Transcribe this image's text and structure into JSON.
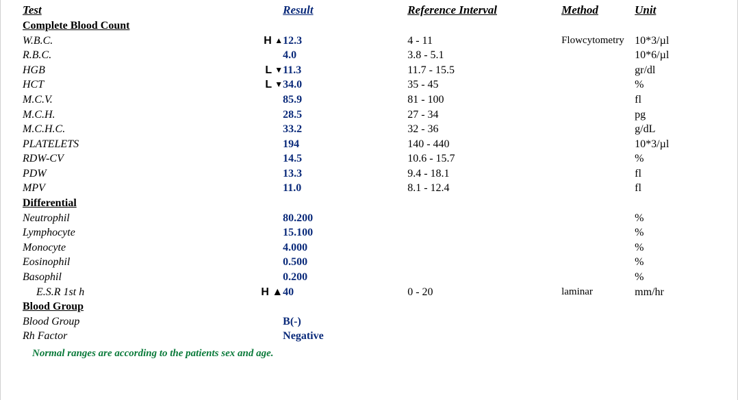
{
  "headers": {
    "test": "Test",
    "result": "Result",
    "reference": "Reference Interval",
    "method": "Method",
    "unit": "Unit"
  },
  "sections": {
    "cbc": "Complete Blood Count",
    "diff": "Differential",
    "bg": "Blood Group"
  },
  "cbc": [
    {
      "name": "W.B.C.",
      "flag": "H ▲",
      "result": "12.3",
      "ref": "4 - 11",
      "method": "Flowcytometry",
      "unit": "10*3/µl"
    },
    {
      "name": "R.B.C.",
      "flag": "",
      "result": "4.0",
      "ref": "3.8 - 5.1",
      "method": "",
      "unit": "10*6/µl"
    },
    {
      "name": "HGB",
      "flag": "L ▼",
      "result": "11.3",
      "ref": "11.7 - 15.5",
      "method": "",
      "unit": "gr/dl"
    },
    {
      "name": "HCT",
      "flag": "L ▼",
      "result": "34.0",
      "ref": "35 - 45",
      "method": "",
      "unit": "%"
    },
    {
      "name": "M.C.V.",
      "flag": "",
      "result": "85.9",
      "ref": "81 - 100",
      "method": "",
      "unit": "fl"
    },
    {
      "name": "M.C.H.",
      "flag": "",
      "result": "28.5",
      "ref": "27 - 34",
      "method": "",
      "unit": "pg"
    },
    {
      "name": "M.C.H.C.",
      "flag": "",
      "result": "33.2",
      "ref": "32 - 36",
      "method": "",
      "unit": "g/dL"
    },
    {
      "name": "PLATELETS",
      "flag": "",
      "result": "194",
      "ref": "140 - 440",
      "method": "",
      "unit": "10*3/µl"
    },
    {
      "name": "RDW-CV",
      "flag": "",
      "result": "14.5",
      "ref": "10.6 - 15.7",
      "method": "",
      "unit": "%"
    },
    {
      "name": "PDW",
      "flag": "",
      "result": "13.3",
      "ref": "9.4 - 18.1",
      "method": "",
      "unit": "fl"
    },
    {
      "name": "MPV",
      "flag": "",
      "result": "11.0",
      "ref": "8.1 - 12.4",
      "method": "",
      "unit": "fl"
    }
  ],
  "diff": [
    {
      "name": "Neutrophil",
      "result": "80.200",
      "unit": "%"
    },
    {
      "name": "Lymphocyte",
      "result": "15.100",
      "unit": "%"
    },
    {
      "name": "Monocyte",
      "result": "4.000",
      "unit": "%"
    },
    {
      "name": "Eosinophil",
      "result": "0.500",
      "unit": "%"
    },
    {
      "name": "Basophil",
      "result": "0.200",
      "unit": "%"
    }
  ],
  "esr": {
    "name": "E.S.R 1st h",
    "flag": "H ▲",
    "result": "40",
    "ref": "0 - 20",
    "method": "laminar",
    "unit": "mm/hr"
  },
  "bg": [
    {
      "name": "Blood Group",
      "result": "B(-)"
    },
    {
      "name": "Rh Factor",
      "result": "Negative"
    }
  ],
  "footnote": "Normal ranges are according to the patients sex and age."
}
